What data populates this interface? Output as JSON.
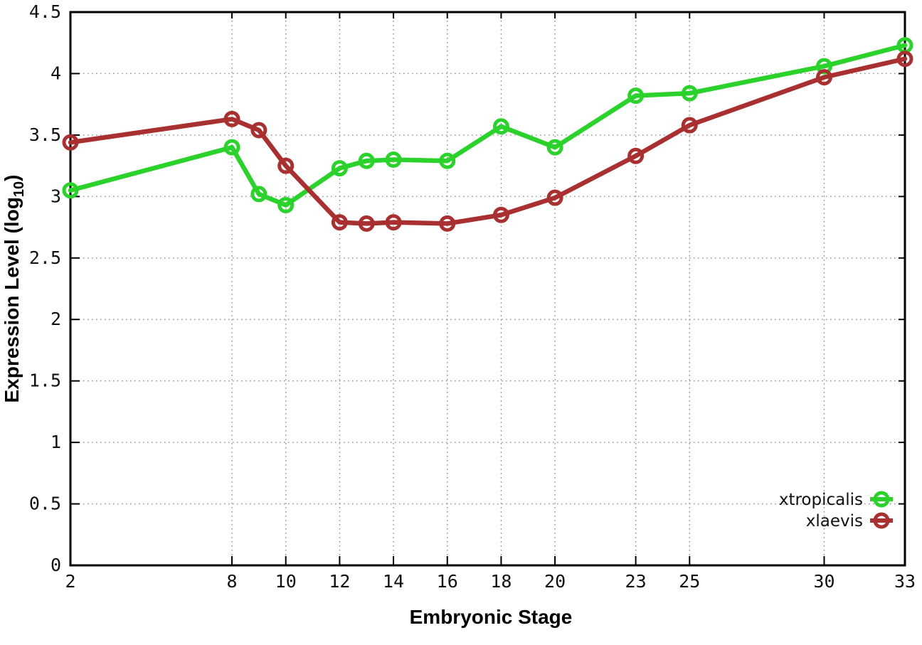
{
  "chart_data": {
    "type": "line",
    "title": "",
    "xlabel": "Embryonic Stage",
    "ylabel_prefix": "Expression Level (log",
    "ylabel_subscript": "10",
    "ylabel_suffix": ")",
    "xlim": [
      2,
      33
    ],
    "ylim": [
      0,
      4.5
    ],
    "x_ticks": [
      2,
      8,
      10,
      12,
      14,
      16,
      18,
      20,
      23,
      25,
      30,
      33
    ],
    "x_tick_labels": [
      "2",
      "8",
      "10",
      "12",
      "14",
      "16",
      "18",
      "20",
      "23",
      "25",
      "30",
      "33"
    ],
    "y_ticks": [
      0,
      0.5,
      1,
      1.5,
      2,
      2.5,
      3,
      3.5,
      4,
      4.5
    ],
    "y_tick_labels": [
      "0",
      "0.5",
      "1",
      "1.5",
      "2",
      "2.5",
      "3",
      "3.5",
      "4",
      "4.5"
    ],
    "grid": true,
    "grid_style": "dotted",
    "grid_color": "#8f8f8f",
    "axis_color": "#000000",
    "background": "#ffffff",
    "marker": "open-circle",
    "legend_position": "inside-bottom-right",
    "x": [
      2,
      8,
      9,
      10,
      12,
      13,
      14,
      16,
      18,
      20,
      23,
      25,
      30,
      33
    ],
    "series": [
      {
        "name": "xtropicalis",
        "color": "#2BD22B",
        "values": [
          3.05,
          3.4,
          3.02,
          2.93,
          3.23,
          3.29,
          3.3,
          3.29,
          3.57,
          3.4,
          3.82,
          3.84,
          4.06,
          4.23
        ]
      },
      {
        "name": "xlaevis",
        "color": "#A93030",
        "values": [
          3.44,
          3.63,
          3.54,
          3.25,
          2.79,
          2.78,
          2.79,
          2.78,
          2.85,
          2.99,
          3.33,
          3.58,
          3.97,
          4.12
        ]
      }
    ]
  }
}
